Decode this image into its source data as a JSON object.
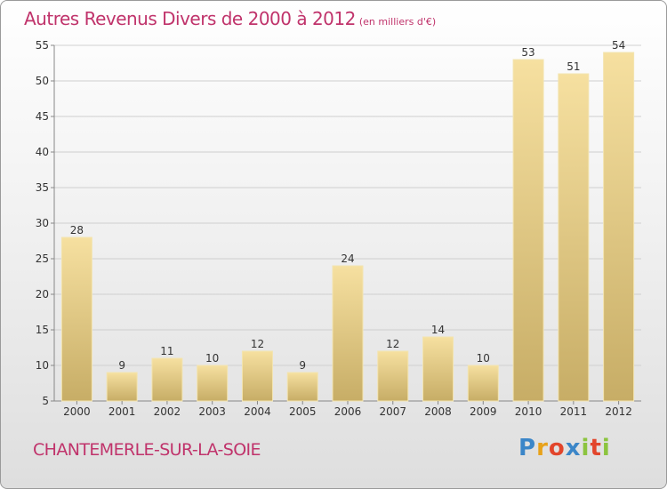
{
  "header": {
    "title": "Autres Revenus Divers de 2000 à 2012",
    "unit": "(en milliers d'€)"
  },
  "footer": {
    "commune": "CHANTEMERLE-SUR-LA-SOIE",
    "logo": "Proxiti",
    "logo_colors": [
      "#3b86c8",
      "#e8a21a",
      "#e2452b",
      "#3b86c8",
      "#8cc43f",
      "#e2452b",
      "#8cc43f"
    ]
  },
  "colors": {
    "bar_light": "#f6e0a0",
    "bar_dark": "#c7ad66",
    "grid": "#cfcfcf",
    "text": "#333333",
    "accent": "#c0336b"
  },
  "chart_data": {
    "type": "bar",
    "title": "Autres Revenus Divers de 2000 à 2012",
    "subtitle": "(en milliers d'€)",
    "categories": [
      "2000",
      "2001",
      "2002",
      "2003",
      "2004",
      "2005",
      "2006",
      "2007",
      "2008",
      "2009",
      "2010",
      "2011",
      "2012"
    ],
    "values": [
      28,
      9,
      11,
      10,
      12,
      9,
      24,
      12,
      14,
      10,
      53,
      51,
      54
    ],
    "ylim": [
      5,
      55
    ],
    "yticks": [
      5,
      10,
      15,
      20,
      25,
      30,
      35,
      40,
      45,
      50,
      55
    ],
    "grid": true,
    "data_labels": true
  }
}
